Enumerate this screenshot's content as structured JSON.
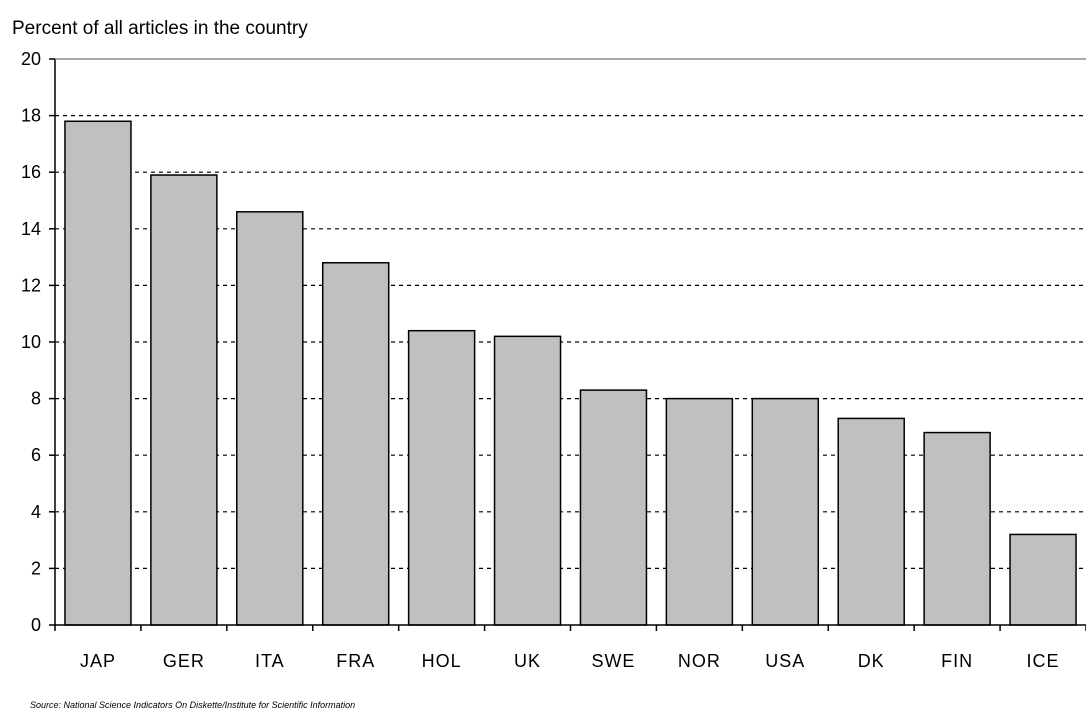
{
  "chart_data": {
    "type": "bar",
    "title": "Percent of all articles in the country",
    "xlabel": "",
    "ylabel": "",
    "categories": [
      "JAP",
      "GER",
      "ITA",
      "FRA",
      "HOL",
      "UK",
      "SWE",
      "NOR",
      "USA",
      "DK",
      "FIN",
      "ICE"
    ],
    "values": [
      17.8,
      15.9,
      14.6,
      12.8,
      10.4,
      10.2,
      8.3,
      8.0,
      8.0,
      7.3,
      6.8,
      3.2
    ],
    "ylim": [
      0,
      20
    ],
    "yticks": [
      0,
      2,
      4,
      6,
      8,
      10,
      12,
      14,
      16,
      18,
      20
    ],
    "grid": "dashed horizontal",
    "legend": "none",
    "bar_color": "#c0c0c0",
    "bar_edge_color": "#000000",
    "source": "Source: National Science Indicators On Diskette/Institute for Scientific Information"
  }
}
